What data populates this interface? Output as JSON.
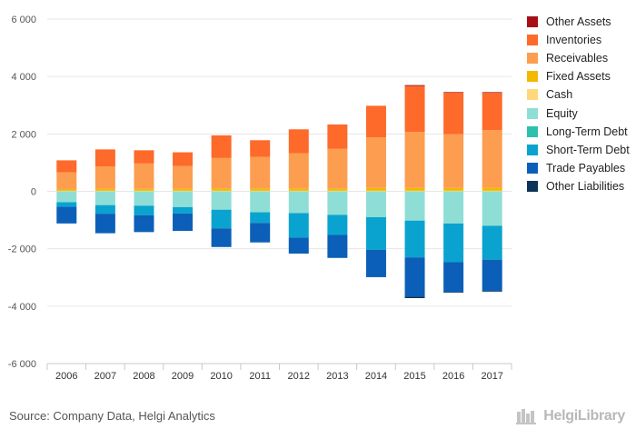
{
  "chart_data": {
    "type": "bar",
    "stacked": true,
    "categories": [
      "2006",
      "2007",
      "2008",
      "2009",
      "2010",
      "2011",
      "2012",
      "2013",
      "2014",
      "2015",
      "2016",
      "2017"
    ],
    "ylim": [
      -6000,
      6000
    ],
    "yticks": [
      6000,
      4000,
      2000,
      0,
      -2000,
      -4000,
      -6000
    ],
    "ytick_labels": [
      "6 000",
      "4 000",
      "2 000",
      "0",
      "-2 000",
      "-4 000",
      "-6 000"
    ],
    "grid": true,
    "legend_position": "right",
    "positive_series": [
      {
        "name": "Other Assets",
        "color": "#a50f15",
        "values": [
          0,
          0,
          0,
          0,
          0,
          0,
          0,
          0,
          0,
          30,
          20,
          25
        ]
      },
      {
        "name": "Inventories",
        "color": "#fd6a2a",
        "values": [
          420,
          590,
          460,
          480,
          790,
          580,
          830,
          850,
          1100,
          1600,
          1450,
          1300
        ]
      },
      {
        "name": "Receivables",
        "color": "#fd9d50",
        "values": [
          580,
          780,
          880,
          790,
          1060,
          1100,
          1230,
          1380,
          1760,
          1950,
          1870,
          2000
        ]
      },
      {
        "name": "Fixed Assets",
        "color": "#f5b800",
        "values": [
          60,
          70,
          70,
          70,
          80,
          80,
          80,
          80,
          100,
          100,
          100,
          110
        ]
      },
      {
        "name": "Cash",
        "color": "#fdd97b",
        "values": [
          20,
          20,
          20,
          20,
          20,
          20,
          20,
          20,
          20,
          20,
          20,
          20
        ]
      }
    ],
    "negative_series": [
      {
        "name": "Equity",
        "color": "#8fded6",
        "values": [
          380,
          480,
          500,
          550,
          640,
          730,
          760,
          820,
          900,
          1020,
          1120,
          1200
        ]
      },
      {
        "name": "Long-Term Debt",
        "color": "#2fc0ad",
        "values": [
          0,
          0,
          0,
          0,
          0,
          0,
          0,
          0,
          0,
          0,
          0,
          0
        ]
      },
      {
        "name": "Short-Term Debt",
        "color": "#0aa3cf",
        "values": [
          160,
          300,
          330,
          220,
          650,
          370,
          850,
          700,
          1140,
          1280,
          1350,
          1180
        ]
      },
      {
        "name": "Trade Payables",
        "color": "#0b5fb8",
        "values": [
          580,
          680,
          590,
          610,
          650,
          680,
          560,
          800,
          950,
          1370,
          1040,
          1090
        ]
      },
      {
        "name": "Other Liabilities",
        "color": "#0d3358",
        "values": [
          0,
          0,
          0,
          0,
          0,
          0,
          0,
          0,
          0,
          50,
          20,
          25
        ]
      }
    ]
  },
  "source": "Source: Company Data, Helgi Analytics",
  "brand": "HelgiLibrary"
}
